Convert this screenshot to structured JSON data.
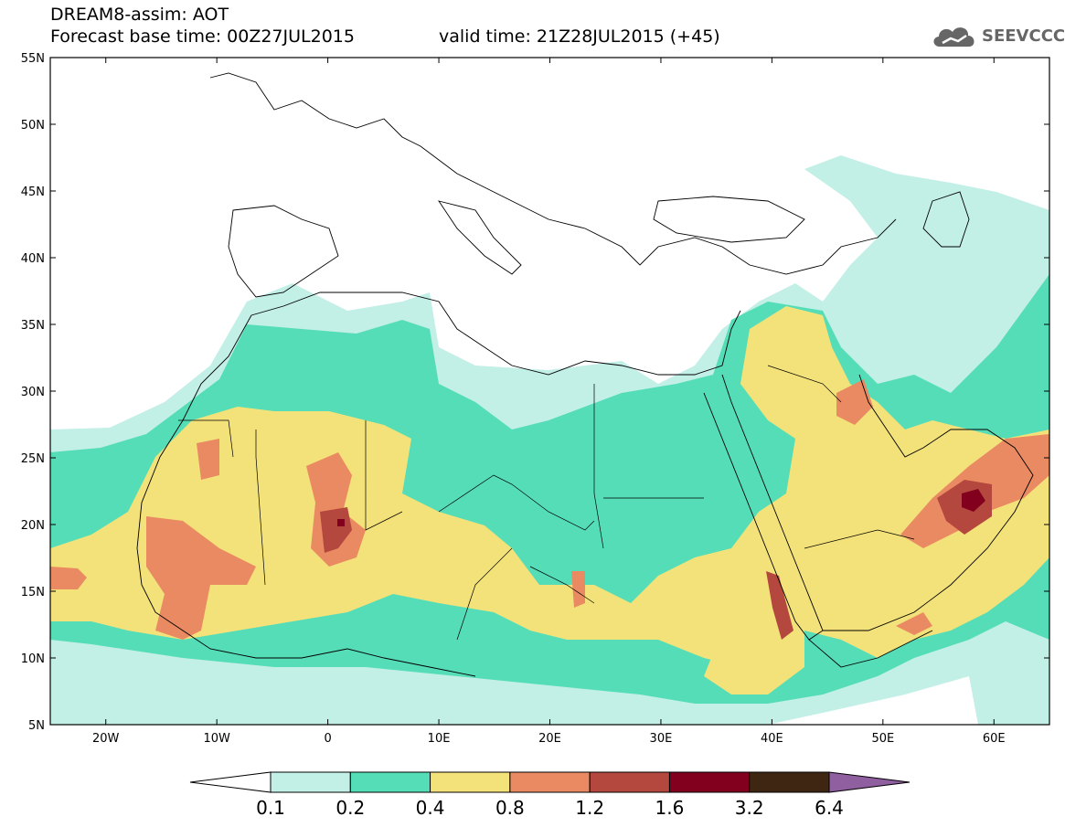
{
  "header": {
    "title": "DREAM8-assim: AOT",
    "base_time": "Forecast base time: 00Z27JUL2015",
    "valid_time": "valid time: 21Z28JUL2015 (+45)"
  },
  "logo": {
    "text": "SEEVCCC",
    "icon": "cloud-icon"
  },
  "map": {
    "lon_range": [
      -25,
      65
    ],
    "lat_range": [
      5,
      55
    ],
    "lat_ticks": [
      "55N",
      "50N",
      "45N",
      "40N",
      "35N",
      "30N",
      "25N",
      "20N",
      "15N",
      "10N",
      "5N"
    ],
    "lon_ticks": [
      "20W",
      "10W",
      "0",
      "10E",
      "20E",
      "30E",
      "40E",
      "50E",
      "60E"
    ]
  },
  "legend": {
    "levels": [
      "0.1",
      "0.2",
      "0.4",
      "0.8",
      "1.2",
      "1.6",
      "3.2",
      "6.4"
    ],
    "colors": [
      "#ffffff",
      "#c2efe6",
      "#55ddb8",
      "#f3e27a",
      "#e98a62",
      "#b4473e",
      "#82001e",
      "#3f2613",
      "#8f5fa0"
    ]
  }
}
